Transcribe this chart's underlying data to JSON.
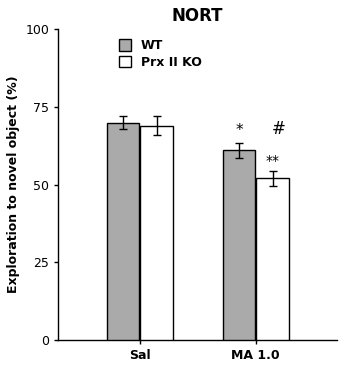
{
  "title": "NORT",
  "ylabel": "Exploration to novel object (%)",
  "groups": [
    "Sal",
    "MA 1.0"
  ],
  "series": [
    "WT",
    "Prx II KO"
  ],
  "values": [
    [
      70.0,
      61.0
    ],
    [
      69.0,
      52.0
    ]
  ],
  "errors": [
    [
      2.0,
      2.5
    ],
    [
      3.0,
      2.5
    ]
  ],
  "bar_colors": [
    "#aaaaaa",
    "#ffffff"
  ],
  "bar_edgecolor": "#000000",
  "ylim": [
    0,
    100
  ],
  "yticks": [
    0,
    25,
    50,
    75,
    100
  ],
  "bar_width": 0.28,
  "group_centers": [
    1.0,
    2.0
  ],
  "legend_labels": [
    "WT",
    "Prx II KO"
  ],
  "title_fontsize": 12,
  "axis_fontsize": 9,
  "tick_fontsize": 9,
  "legend_fontsize": 9,
  "annotation_fontsize": 10
}
